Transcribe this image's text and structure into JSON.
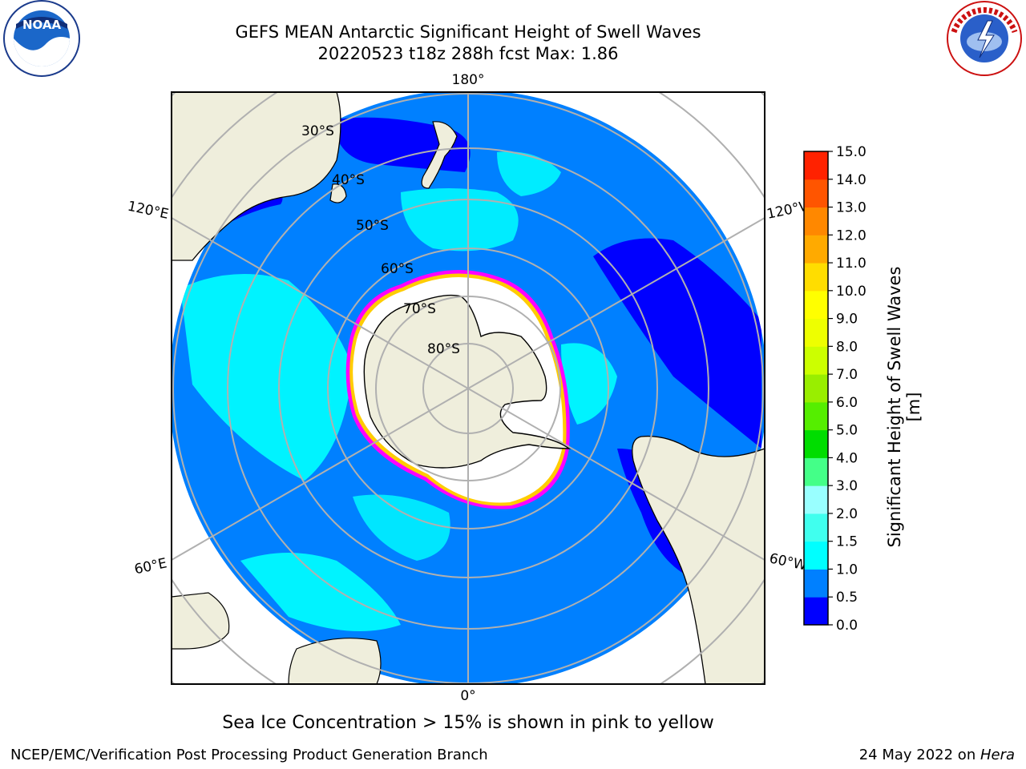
{
  "header": {
    "title_line1": "GEFS MEAN Antarctic Significant Height of Swell Waves",
    "title_line2": "20220523 t18z 288h fcst   Max: 1.86"
  },
  "logos": {
    "noaa": {
      "icon": "noaa-logo-icon",
      "text": "NOAA"
    },
    "nws": {
      "icon": "nws-logo-icon"
    }
  },
  "map": {
    "projection": "south-polar-stereographic",
    "latitude_labels": [
      "30°S",
      "40°S",
      "50°S",
      "60°S",
      "70°S",
      "80°S"
    ],
    "longitude_labels": {
      "top": "180°",
      "bottom": "0°",
      "upper_left": "120°E",
      "upper_right": "120°W",
      "lower_left": "60°E",
      "lower_right": "60°W"
    },
    "colors": {
      "ocean_base": "#0080ff",
      "land": "#efeedc",
      "sea_ice": "#ffffff",
      "grid": "#b0b0b0",
      "low_swell": "#0000ff",
      "mid_swell": "#00ffff",
      "ice_edge_pink": "#ff00ff",
      "ice_edge_yellow": "#ffcc00"
    }
  },
  "colorbar": {
    "label": "Significant Height of Swell Waves [m]",
    "ticks": [
      "0.0",
      "0.5",
      "1.0",
      "1.5",
      "2.0",
      "3.0",
      "4.0",
      "5.0",
      "6.0",
      "7.0",
      "8.0",
      "9.0",
      "10.0",
      "11.0",
      "12.0",
      "13.0",
      "14.0",
      "15.0"
    ],
    "colors": [
      "#0000ff",
      "#0080ff",
      "#00ffff",
      "#40ffee",
      "#99ffff",
      "#44ff88",
      "#00dd00",
      "#55ee00",
      "#99ee00",
      "#ccff00",
      "#eeff00",
      "#ffff00",
      "#ffdd00",
      "#ffaa00",
      "#ff8800",
      "#ff5500",
      "#ff2200"
    ]
  },
  "footer": {
    "note": "Sea Ice Concentration > 15% is shown in pink to yellow",
    "left": "NCEP/EMC/Verification Post Processing Product Generation Branch",
    "date": "24 May 2022 on ",
    "system": "Hera"
  }
}
